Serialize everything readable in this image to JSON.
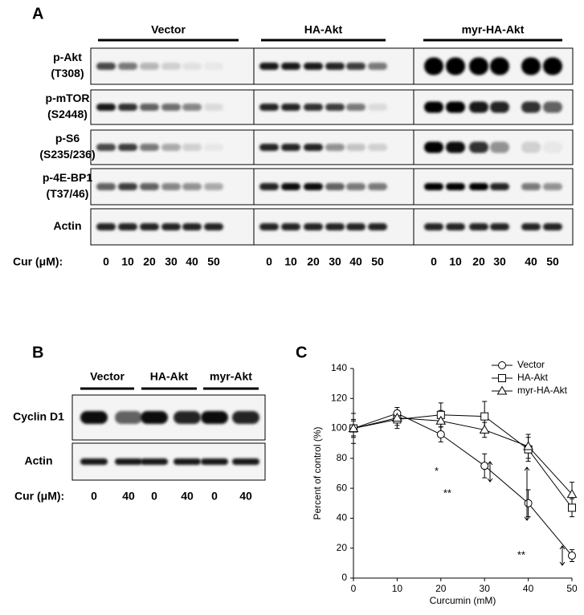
{
  "panel_a": {
    "label": "A",
    "groups": [
      "Vector",
      "HA-Akt",
      "myr-HA-Akt"
    ],
    "rows": [
      [
        "p-Akt",
        "(T308)"
      ],
      [
        "p-mTOR",
        "(S2448)"
      ],
      [
        "p-S6",
        "(S235/236)"
      ],
      [
        "p-4E-BP1",
        "(T37/46)"
      ],
      [
        "Actin"
      ]
    ],
    "dose_label": "Cur (μM):",
    "doses": [
      "0",
      "10",
      "20",
      "30",
      "40",
      "50"
    ]
  },
  "panel_b": {
    "label": "B",
    "groups": [
      "Vector",
      "HA-Akt",
      "myr-Akt"
    ],
    "rows": [
      "Cyclin D1",
      "Actin"
    ],
    "dose_label": "Cur (μM):",
    "doses": [
      "0",
      "40"
    ]
  },
  "chart_data": {
    "type": "line",
    "label": "C",
    "x_label": "Curcumin  (mM)",
    "y_label": "Percent of control (%)",
    "x": [
      0,
      10,
      20,
      30,
      40,
      50
    ],
    "xlim": [
      0,
      50
    ],
    "xticks": [
      0,
      10,
      20,
      30,
      40,
      50
    ],
    "ylim": [
      0,
      140
    ],
    "yticks": [
      0,
      20,
      40,
      60,
      80,
      100,
      120,
      140
    ],
    "legend": "top-right",
    "series": [
      {
        "name": "Vector",
        "color": "#000000",
        "marker": "circle",
        "values": [
          100,
          110,
          96,
          75,
          50,
          15
        ],
        "errors": [
          5,
          4,
          5,
          8,
          9,
          4
        ]
      },
      {
        "name": "HA-Akt",
        "color": "#000000",
        "marker": "square",
        "values": [
          100,
          106,
          109,
          108,
          86,
          47
        ],
        "errors": [
          10,
          6,
          8,
          10,
          8,
          6
        ]
      },
      {
        "name": "myr-HA-Akt",
        "color": "#000000",
        "marker": "triangle",
        "values": [
          100,
          107,
          105,
          99,
          88,
          56
        ],
        "errors": [
          6,
          5,
          7,
          5,
          8,
          8
        ]
      }
    ],
    "annotations": [
      "*",
      "**",
      "**"
    ]
  }
}
